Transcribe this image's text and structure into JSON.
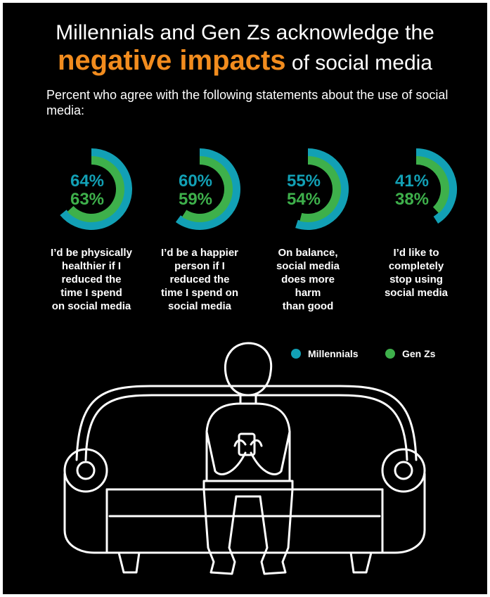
{
  "title": {
    "line1": "Millennials and Gen Zs acknowledge the",
    "line2_highlight": "negative impacts",
    "line2_rest": " of social media"
  },
  "subtitle": "Percent who agree with the following statements about the use of social media:",
  "colors": {
    "background": "#000000",
    "millennials": "#12a0b5",
    "genz": "#3eb04b",
    "highlight": "#f28c1e",
    "text": "#ffffff"
  },
  "legend": {
    "millennials": "Millennials",
    "genz": "Gen Zs",
    "position": "right, below charts"
  },
  "chart_data": {
    "type": "donut",
    "series": [
      {
        "name": "Millennials",
        "values": [
          64,
          60,
          55,
          41
        ]
      },
      {
        "name": "Gen Zs",
        "values": [
          63,
          59,
          54,
          38
        ]
      }
    ],
    "categories": [
      "I’d be physically\nhealthier if I\nreduced the\ntime I spend\non social media",
      "I’d be a happier\nperson if I\nreduced the\ntime I spend on\nsocial media",
      "On balance,\nsocial media\ndoes more\nharm\nthan good",
      "I’d like to\ncompletely\nstop using\nsocial media"
    ],
    "value_labels": [
      {
        "millennials": "64%",
        "genz": "63%"
      },
      {
        "millennials": "60%",
        "genz": "59%"
      },
      {
        "millennials": "55%",
        "genz": "54%"
      },
      {
        "millennials": "41%",
        "genz": "38%"
      }
    ]
  },
  "illustration": "person-on-couch-icon"
}
